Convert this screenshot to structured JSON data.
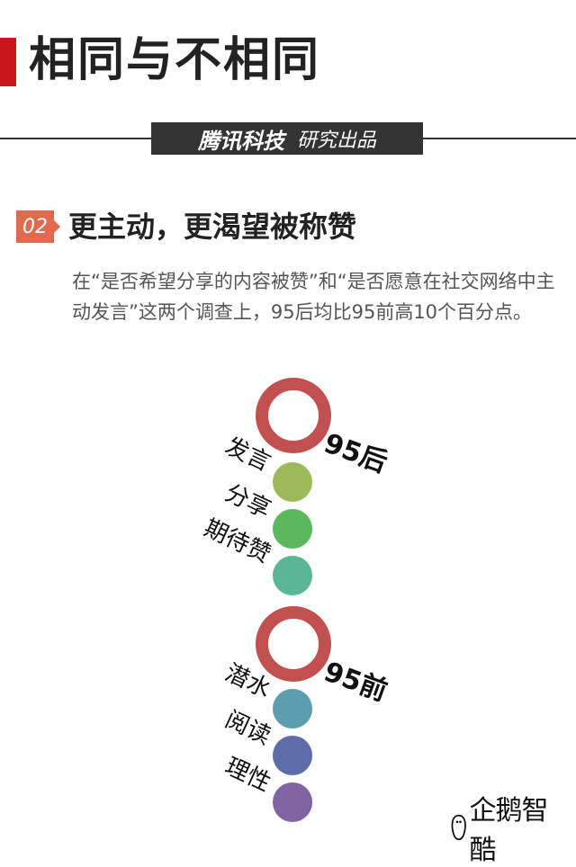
{
  "title": "相同与不相同",
  "brand": {
    "name": "腾讯科技",
    "tagline": "研究出品"
  },
  "section": {
    "number": "02",
    "title": "更主动，更渴望被称赞",
    "body": "在“是否希望分享的内容被赞”和“是否愿意在社交网络中主动发言”这两个调查上，95后均比95前高10个百分点。"
  },
  "groups": [
    {
      "label": "95后",
      "ring_color": "#c1504e",
      "items": [
        {
          "label": "发言",
          "color": "#9bbb59"
        },
        {
          "label": "分享",
          "color": "#5cb85c"
        },
        {
          "label": "期待赞",
          "color": "#5bb597"
        }
      ]
    },
    {
      "label": "95前",
      "ring_color": "#c1504e",
      "items": [
        {
          "label": "潜水",
          "color": "#5b9fae"
        },
        {
          "label": "阅读",
          "color": "#5c6daa"
        },
        {
          "label": "理性",
          "color": "#8064a2"
        }
      ]
    }
  ],
  "logo": {
    "text": "企鹅智酷",
    "icon": "penguin-icon"
  }
}
